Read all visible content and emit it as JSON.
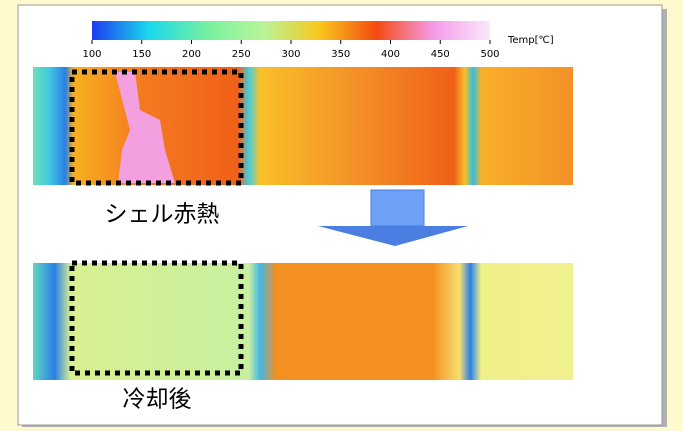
{
  "colorbar": {
    "label": "Temp[℃]",
    "ticks": [
      100,
      150,
      200,
      250,
      300,
      350,
      400,
      450,
      500
    ],
    "colors": [
      "#1c3cf0",
      "#1ad8ec",
      "#74f0a0",
      "#b8f59a",
      "#f8c81c",
      "#f44a12",
      "#f49ae8",
      "#fbe8fb"
    ]
  },
  "panels": [
    {
      "label": "シェル赤熱"
    },
    {
      "label": "冷却後"
    }
  ]
}
